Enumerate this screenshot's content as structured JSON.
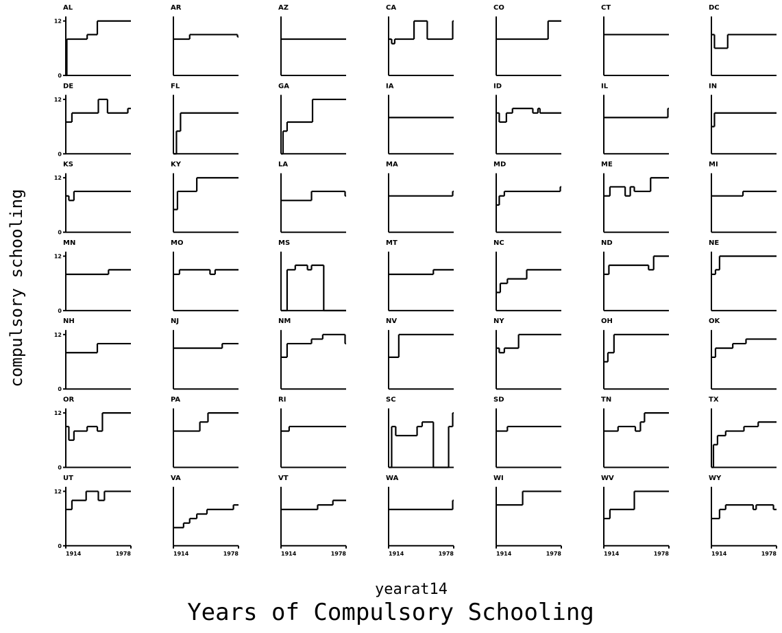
{
  "title": "Years of Compulsory Schooling",
  "x_label": "yearat14",
  "y_label": "compulsory schooling",
  "chart_data": [
    {
      "type": "line",
      "drawstyle": "steps-post",
      "title": "AL",
      "x": [
        1914,
        1915,
        1935,
        1945
      ],
      "values": [
        0,
        8,
        9,
        12
      ],
      "xlim": [
        1914,
        1978
      ],
      "ylim": [
        0,
        13
      ],
      "yticks": [
        0,
        12
      ]
    },
    {
      "type": "line",
      "drawstyle": "steps-post",
      "title": "AR",
      "x": [
        1914,
        1930,
        1977
      ],
      "values": [
        8,
        9,
        8.5
      ],
      "xlim": [
        1914,
        1978
      ],
      "ylim": [
        0,
        13
      ]
    },
    {
      "type": "line",
      "drawstyle": "steps-post",
      "title": "AZ",
      "x": [
        1914
      ],
      "values": [
        8
      ],
      "xlim": [
        1914,
        1978
      ],
      "ylim": [
        0,
        13
      ]
    },
    {
      "type": "line",
      "drawstyle": "steps-post",
      "title": "CA",
      "x": [
        1914,
        1917,
        1920,
        1939,
        1952,
        1977
      ],
      "values": [
        8,
        7,
        8,
        12,
        8,
        12
      ],
      "xlim": [
        1914,
        1978
      ],
      "ylim": [
        0,
        13
      ]
    },
    {
      "type": "line",
      "drawstyle": "steps-post",
      "title": "CO",
      "x": [
        1914,
        1965
      ],
      "values": [
        8,
        12
      ],
      "xlim": [
        1914,
        1978
      ],
      "ylim": [
        0,
        13
      ]
    },
    {
      "type": "line",
      "drawstyle": "steps-post",
      "title": "CT",
      "x": [
        1914
      ],
      "values": [
        9
      ],
      "xlim": [
        1914,
        1978
      ],
      "ylim": [
        0,
        13
      ]
    },
    {
      "type": "line",
      "drawstyle": "steps-post",
      "title": "DC",
      "x": [
        1914,
        1917,
        1930
      ],
      "values": [
        9,
        6,
        9
      ],
      "xlim": [
        1914,
        1978
      ],
      "ylim": [
        0,
        13
      ]
    },
    {
      "type": "line",
      "drawstyle": "steps-post",
      "title": "DE",
      "x": [
        1914,
        1920,
        1946,
        1955,
        1975
      ],
      "values": [
        7,
        9,
        12,
        9,
        10
      ],
      "xlim": [
        1914,
        1978
      ],
      "ylim": [
        0,
        13
      ],
      "yticks": [
        0,
        12
      ]
    },
    {
      "type": "line",
      "drawstyle": "steps-post",
      "title": "FL",
      "x": [
        1914,
        1917,
        1921
      ],
      "values": [
        0,
        5,
        9
      ],
      "xlim": [
        1914,
        1978
      ],
      "ylim": [
        0,
        13
      ]
    },
    {
      "type": "line",
      "drawstyle": "steps-post",
      "title": "GA",
      "x": [
        1914,
        1916,
        1920,
        1945
      ],
      "values": [
        0,
        5,
        7,
        12
      ],
      "xlim": [
        1914,
        1978
      ],
      "ylim": [
        0,
        13
      ]
    },
    {
      "type": "line",
      "drawstyle": "steps-post",
      "title": "IA",
      "x": [
        1914
      ],
      "values": [
        8
      ],
      "xlim": [
        1914,
        1978
      ],
      "ylim": [
        0,
        13
      ]
    },
    {
      "type": "line",
      "drawstyle": "steps-post",
      "title": "ID",
      "x": [
        1914,
        1917,
        1924,
        1930,
        1950,
        1955,
        1957
      ],
      "values": [
        9,
        7,
        9,
        10,
        9,
        10,
        9
      ],
      "xlim": [
        1914,
        1978
      ],
      "ylim": [
        0,
        13
      ]
    },
    {
      "type": "line",
      "drawstyle": "steps-post",
      "title": "IL",
      "x": [
        1914,
        1977
      ],
      "values": [
        8,
        10
      ],
      "xlim": [
        1914,
        1978
      ],
      "ylim": [
        0,
        13
      ]
    },
    {
      "type": "line",
      "drawstyle": "steps-post",
      "title": "IN",
      "x": [
        1914,
        1917
      ],
      "values": [
        6,
        9
      ],
      "xlim": [
        1914,
        1978
      ],
      "ylim": [
        0,
        13
      ]
    },
    {
      "type": "line",
      "drawstyle": "steps-post",
      "title": "KS",
      "x": [
        1914,
        1917,
        1922
      ],
      "values": [
        8,
        7,
        9
      ],
      "xlim": [
        1914,
        1978
      ],
      "ylim": [
        0,
        13
      ],
      "yticks": [
        0,
        12
      ]
    },
    {
      "type": "line",
      "drawstyle": "steps-post",
      "title": "KY",
      "x": [
        1914,
        1918,
        1937
      ],
      "values": [
        5,
        9,
        12
      ],
      "xlim": [
        1914,
        1978
      ],
      "ylim": [
        0,
        13
      ]
    },
    {
      "type": "line",
      "drawstyle": "steps-post",
      "title": "LA",
      "x": [
        1914,
        1944,
        1977
      ],
      "values": [
        7,
        9,
        8
      ],
      "xlim": [
        1914,
        1978
      ],
      "ylim": [
        0,
        13
      ]
    },
    {
      "type": "line",
      "drawstyle": "steps-post",
      "title": "MA",
      "x": [
        1914,
        1977
      ],
      "values": [
        8,
        9
      ],
      "xlim": [
        1914,
        1978
      ],
      "ylim": [
        0,
        13
      ]
    },
    {
      "type": "line",
      "drawstyle": "steps-post",
      "title": "MD",
      "x": [
        1914,
        1917,
        1922,
        1977
      ],
      "values": [
        6,
        8,
        9,
        10
      ],
      "xlim": [
        1914,
        1978
      ],
      "ylim": [
        0,
        13
      ]
    },
    {
      "type": "line",
      "drawstyle": "steps-post",
      "title": "ME",
      "x": [
        1914,
        1920,
        1935,
        1940,
        1944,
        1960
      ],
      "values": [
        8,
        10,
        8,
        10,
        9,
        12
      ],
      "xlim": [
        1914,
        1978
      ],
      "ylim": [
        0,
        13
      ]
    },
    {
      "type": "line",
      "drawstyle": "steps-post",
      "title": "MI",
      "x": [
        1914,
        1945
      ],
      "values": [
        8,
        9
      ],
      "xlim": [
        1914,
        1978
      ],
      "ylim": [
        0,
        13
      ]
    },
    {
      "type": "line",
      "drawstyle": "steps-post",
      "title": "MN",
      "x": [
        1914,
        1956
      ],
      "values": [
        8,
        9
      ],
      "xlim": [
        1914,
        1978
      ],
      "ylim": [
        0,
        13
      ],
      "yticks": [
        0,
        12
      ]
    },
    {
      "type": "line",
      "drawstyle": "steps-post",
      "title": "MO",
      "x": [
        1914,
        1920,
        1950,
        1955
      ],
      "values": [
        8,
        9,
        8,
        9
      ],
      "xlim": [
        1914,
        1978
      ],
      "ylim": [
        0,
        13
      ]
    },
    {
      "type": "line",
      "drawstyle": "steps-post",
      "title": "MS",
      "x": [
        1914,
        1920,
        1928,
        1940,
        1944,
        1956
      ],
      "values": [
        0,
        9,
        10,
        9,
        10,
        0
      ],
      "xlim": [
        1914,
        1978
      ],
      "ylim": [
        0,
        13
      ]
    },
    {
      "type": "line",
      "drawstyle": "steps-post",
      "title": "MT",
      "x": [
        1914,
        1958
      ],
      "values": [
        8,
        9
      ],
      "xlim": [
        1914,
        1978
      ],
      "ylim": [
        0,
        13
      ]
    },
    {
      "type": "line",
      "drawstyle": "steps-post",
      "title": "NC",
      "x": [
        1914,
        1918,
        1925,
        1944
      ],
      "values": [
        4,
        6,
        7,
        9
      ],
      "xlim": [
        1914,
        1978
      ],
      "ylim": [
        0,
        13
      ]
    },
    {
      "type": "line",
      "drawstyle": "steps-post",
      "title": "ND",
      "x": [
        1914,
        1919,
        1958,
        1963
      ],
      "values": [
        8,
        10,
        9,
        12
      ],
      "xlim": [
        1914,
        1978
      ],
      "ylim": [
        0,
        13
      ]
    },
    {
      "type": "line",
      "drawstyle": "steps-post",
      "title": "NE",
      "x": [
        1914,
        1918,
        1922
      ],
      "values": [
        8,
        9,
        12
      ],
      "xlim": [
        1914,
        1978
      ],
      "ylim": [
        0,
        13
      ]
    },
    {
      "type": "line",
      "drawstyle": "steps-post",
      "title": "NH",
      "x": [
        1914,
        1945
      ],
      "values": [
        8,
        10
      ],
      "xlim": [
        1914,
        1978
      ],
      "ylim": [
        0,
        13
      ],
      "yticks": [
        0,
        12
      ]
    },
    {
      "type": "line",
      "drawstyle": "steps-post",
      "title": "NJ",
      "x": [
        1914,
        1962
      ],
      "values": [
        9,
        10
      ],
      "xlim": [
        1914,
        1978
      ],
      "ylim": [
        0,
        13
      ]
    },
    {
      "type": "line",
      "drawstyle": "steps-post",
      "title": "NM",
      "x": [
        1914,
        1920,
        1944,
        1955,
        1977
      ],
      "values": [
        7,
        10,
        11,
        12,
        10
      ],
      "xlim": [
        1914,
        1978
      ],
      "ylim": [
        0,
        13
      ]
    },
    {
      "type": "line",
      "drawstyle": "steps-post",
      "title": "NV",
      "x": [
        1914,
        1924
      ],
      "values": [
        7,
        12
      ],
      "xlim": [
        1914,
        1978
      ],
      "ylim": [
        0,
        13
      ]
    },
    {
      "type": "line",
      "drawstyle": "steps-post",
      "title": "NY",
      "x": [
        1914,
        1917,
        1922,
        1936
      ],
      "values": [
        9,
        8,
        9,
        12
      ],
      "xlim": [
        1914,
        1978
      ],
      "ylim": [
        0,
        13
      ]
    },
    {
      "type": "line",
      "drawstyle": "steps-post",
      "title": "OH",
      "x": [
        1914,
        1918,
        1924
      ],
      "values": [
        6,
        8,
        12
      ],
      "xlim": [
        1914,
        1978
      ],
      "ylim": [
        0,
        13
      ]
    },
    {
      "type": "line",
      "drawstyle": "steps-post",
      "title": "OK",
      "x": [
        1914,
        1918,
        1935,
        1948
      ],
      "values": [
        7,
        9,
        10,
        11
      ],
      "xlim": [
        1914,
        1978
      ],
      "ylim": [
        0,
        13
      ]
    },
    {
      "type": "line",
      "drawstyle": "steps-post",
      "title": "OR",
      "x": [
        1914,
        1917,
        1922,
        1935,
        1945,
        1950
      ],
      "values": [
        9,
        6,
        8,
        9,
        8,
        12
      ],
      "xlim": [
        1914,
        1978
      ],
      "ylim": [
        0,
        13
      ],
      "yticks": [
        0,
        12
      ]
    },
    {
      "type": "line",
      "drawstyle": "steps-post",
      "title": "PA",
      "x": [
        1914,
        1940,
        1948
      ],
      "values": [
        8,
        10,
        12
      ],
      "xlim": [
        1914,
        1978
      ],
      "ylim": [
        0,
        13
      ]
    },
    {
      "type": "line",
      "drawstyle": "steps-post",
      "title": "RI",
      "x": [
        1914,
        1922
      ],
      "values": [
        8,
        9
      ],
      "xlim": [
        1914,
        1978
      ],
      "ylim": [
        0,
        13
      ]
    },
    {
      "type": "line",
      "drawstyle": "steps-post",
      "title": "SC",
      "x": [
        1914,
        1917,
        1921,
        1942,
        1947,
        1958,
        1973,
        1977
      ],
      "values": [
        0,
        9,
        7,
        9,
        10,
        0,
        9,
        12
      ],
      "xlim": [
        1914,
        1978
      ],
      "ylim": [
        0,
        13
      ]
    },
    {
      "type": "line",
      "drawstyle": "steps-post",
      "title": "SD",
      "x": [
        1914,
        1925
      ],
      "values": [
        8,
        9
      ],
      "xlim": [
        1914,
        1978
      ],
      "ylim": [
        0,
        13
      ]
    },
    {
      "type": "line",
      "drawstyle": "steps-post",
      "title": "TN",
      "x": [
        1914,
        1928,
        1945,
        1950,
        1954
      ],
      "values": [
        8,
        9,
        8,
        10,
        12
      ],
      "xlim": [
        1914,
        1978
      ],
      "ylim": [
        0,
        13
      ]
    },
    {
      "type": "line",
      "drawstyle": "steps-post",
      "title": "TX",
      "x": [
        1914,
        1916,
        1920,
        1928,
        1946,
        1960
      ],
      "values": [
        0,
        5,
        7,
        8,
        9,
        10
      ],
      "xlim": [
        1914,
        1978
      ],
      "ylim": [
        0,
        13
      ]
    },
    {
      "type": "line",
      "drawstyle": "steps-post",
      "title": "UT",
      "x": [
        1914,
        1920,
        1934,
        1946,
        1952
      ],
      "values": [
        8,
        10,
        12,
        10,
        12
      ],
      "xlim": [
        1914,
        1978
      ],
      "ylim": [
        0,
        13
      ],
      "yticks": [
        0,
        12
      ],
      "xticks": [
        1914,
        1978
      ]
    },
    {
      "type": "line",
      "drawstyle": "steps-post",
      "title": "VA",
      "x": [
        1914,
        1924,
        1930,
        1937,
        1947,
        1973
      ],
      "values": [
        4,
        5,
        6,
        7,
        8,
        9
      ],
      "xlim": [
        1914,
        1978
      ],
      "ylim": [
        0,
        13
      ],
      "xticks": [
        1914,
        1978
      ]
    },
    {
      "type": "line",
      "drawstyle": "steps-post",
      "title": "VT",
      "x": [
        1914,
        1950,
        1965
      ],
      "values": [
        8,
        9,
        10
      ],
      "xlim": [
        1914,
        1978
      ],
      "ylim": [
        0,
        13
      ],
      "xticks": [
        1914,
        1978
      ]
    },
    {
      "type": "line",
      "drawstyle": "steps-post",
      "title": "WA",
      "x": [
        1914,
        1977
      ],
      "values": [
        8,
        10
      ],
      "xlim": [
        1914,
        1978
      ],
      "ylim": [
        0,
        13
      ],
      "xticks": [
        1914,
        1978
      ]
    },
    {
      "type": "line",
      "drawstyle": "steps-post",
      "title": "WI",
      "x": [
        1914,
        1940
      ],
      "values": [
        9,
        12
      ],
      "xlim": [
        1914,
        1978
      ],
      "ylim": [
        0,
        13
      ],
      "xticks": [
        1914,
        1978
      ]
    },
    {
      "type": "line",
      "drawstyle": "steps-post",
      "title": "WV",
      "x": [
        1914,
        1920,
        1944
      ],
      "values": [
        6,
        8,
        12
      ],
      "xlim": [
        1914,
        1978
      ],
      "ylim": [
        0,
        13
      ],
      "xticks": [
        1914,
        1978
      ]
    },
    {
      "type": "line",
      "drawstyle": "steps-post",
      "title": "WY",
      "x": [
        1914,
        1922,
        1928,
        1955,
        1958,
        1975
      ],
      "values": [
        6,
        8,
        9,
        8,
        9,
        8
      ],
      "xlim": [
        1914,
        1978
      ],
      "ylim": [
        0,
        13
      ],
      "xticks": [
        1914,
        1978
      ]
    }
  ]
}
